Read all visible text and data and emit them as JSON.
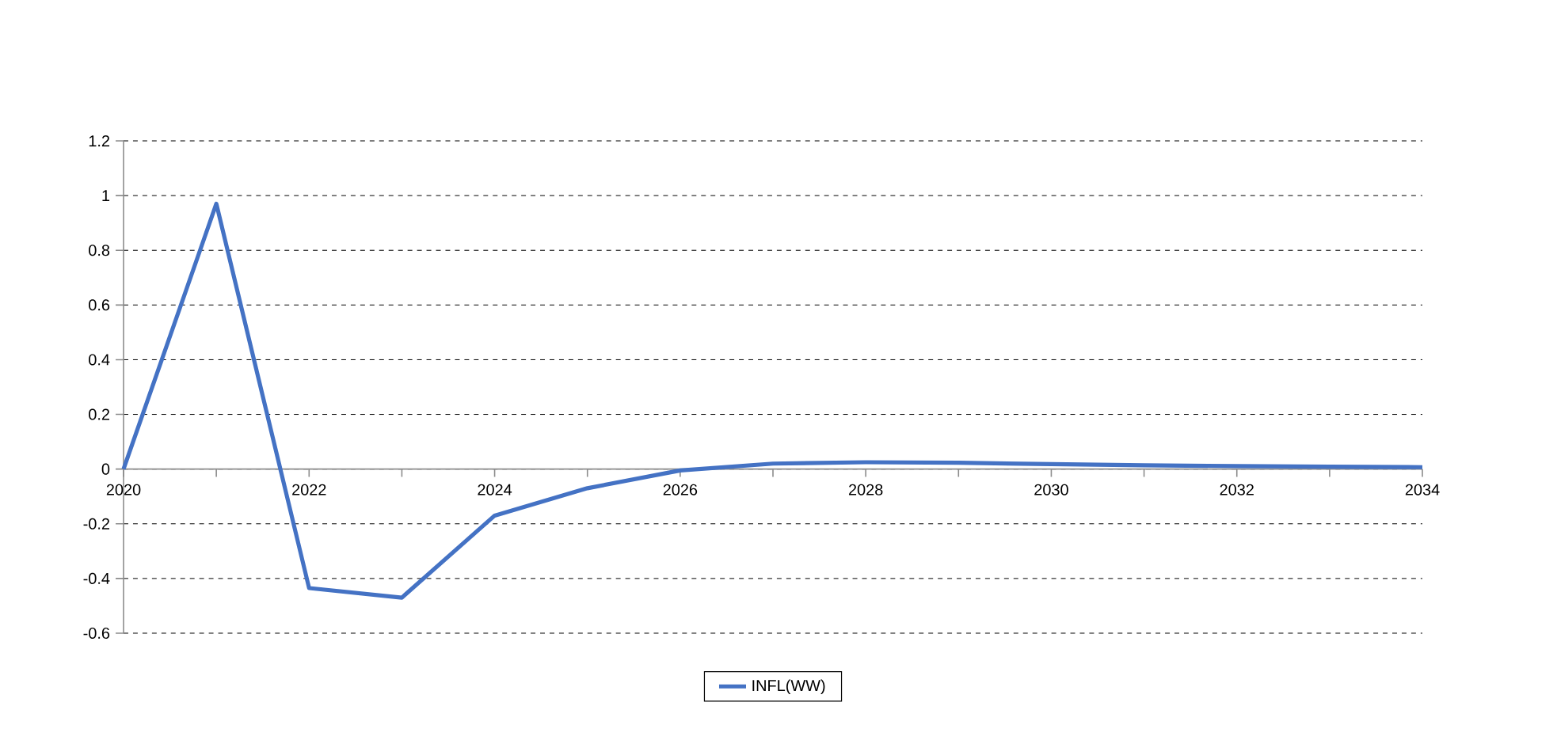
{
  "chart_data": {
    "type": "line",
    "x": [
      2020,
      2021,
      2022,
      2023,
      2024,
      2025,
      2026,
      2027,
      2028,
      2029,
      2030,
      2031,
      2032,
      2033,
      2034
    ],
    "series": [
      {
        "name": "INFL(WW)",
        "color": "#4472c4",
        "values": [
          0,
          0.97,
          -0.435,
          -0.47,
          -0.17,
          -0.07,
          -0.005,
          0.02,
          0.025,
          0.023,
          0.018,
          0.014,
          0.011,
          0.009,
          0.007
        ]
      }
    ],
    "xlim": [
      2020,
      2034
    ],
    "xticks": [
      2020,
      {
        "value": 2021,
        "label": null
      },
      2022,
      {
        "value": 2023,
        "label": null
      },
      2024,
      {
        "value": 2025,
        "label": null
      },
      2026,
      {
        "value": 2027,
        "label": null
      },
      2028,
      {
        "value": 2029,
        "label": null
      },
      2030,
      {
        "value": 2031,
        "label": null
      },
      2032,
      {
        "value": 2033,
        "label": null
      },
      2034
    ],
    "ylim": [
      -0.6,
      1.2
    ],
    "yticks": [
      -0.6,
      -0.4,
      -0.2,
      0,
      0.2,
      0.4,
      0.6,
      0.8,
      1,
      1.2
    ],
    "grid": "y",
    "legend": "bottom",
    "line_style": "solid"
  }
}
